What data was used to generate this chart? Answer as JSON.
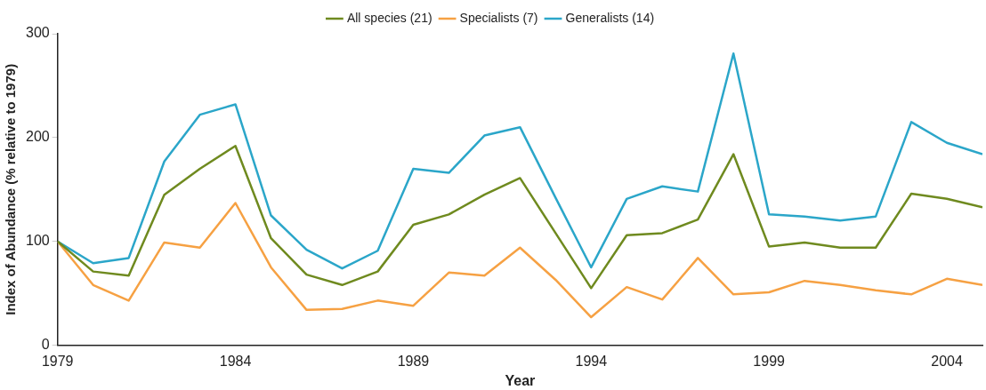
{
  "chart_data": {
    "type": "line",
    "xlabel": "Year",
    "ylabel": "Index of Abundance (% relative to 1979)",
    "x": [
      1979,
      1980,
      1981,
      1982,
      1983,
      1984,
      1985,
      1986,
      1987,
      1988,
      1989,
      1990,
      1991,
      1992,
      1993,
      1994,
      1995,
      1996,
      1997,
      1998,
      1999,
      2000,
      2001,
      2002,
      2003,
      2004,
      2005
    ],
    "series": [
      {
        "name": "All species (21)",
        "color": "#6f8a1f",
        "values": [
          100,
          71,
          67,
          145,
          170,
          192,
          103,
          68,
          58,
          71,
          116,
          126,
          145,
          161,
          108,
          55,
          106,
          108,
          121,
          184,
          95,
          99,
          94,
          94,
          146,
          141,
          133
        ]
      },
      {
        "name": "Specialists (7)",
        "color": "#f6a143",
        "values": [
          100,
          58,
          43,
          99,
          94,
          137,
          75,
          34,
          35,
          43,
          38,
          70,
          67,
          94,
          63,
          27,
          56,
          44,
          84,
          49,
          51,
          62,
          58,
          53,
          49,
          64,
          58
        ]
      },
      {
        "name": "Generalists (14)",
        "color": "#2ba6c9",
        "values": [
          100,
          79,
          84,
          177,
          222,
          232,
          125,
          92,
          74,
          91,
          170,
          166,
          202,
          210,
          142,
          75,
          141,
          153,
          148,
          281,
          126,
          124,
          120,
          124,
          215,
          195,
          184
        ]
      }
    ],
    "xlim": [
      1979,
      2005
    ],
    "xticks": [
      1979,
      1984,
      1989,
      1994,
      1999,
      2004
    ],
    "ylim": [
      0,
      300
    ],
    "yticks": [
      0,
      100,
      200,
      300
    ],
    "grid": false,
    "legend": "top",
    "marker": "none",
    "line_style": "solid"
  }
}
